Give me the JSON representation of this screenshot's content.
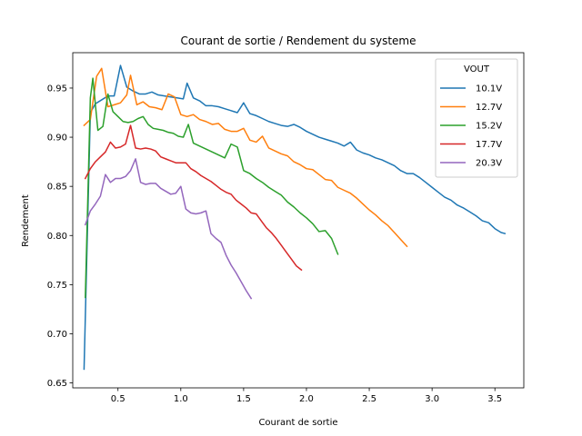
{
  "chart_data": {
    "type": "line",
    "title": "Courant de sortie / Rendement du systeme",
    "xlabel": "Courant de sortie",
    "ylabel": "Rendement",
    "xlim": [
      0.14,
      3.73
    ],
    "ylim": [
      0.645,
      0.986
    ],
    "xticks": [
      0.5,
      1.0,
      1.5,
      2.0,
      2.5,
      3.0,
      3.5
    ],
    "xtick_labels": [
      "0.5",
      "1.0",
      "1.5",
      "2.0",
      "2.5",
      "3.0",
      "3.5"
    ],
    "yticks": [
      0.65,
      0.7,
      0.75,
      0.8,
      0.85,
      0.9,
      0.95
    ],
    "ytick_labels": [
      "0.65",
      "0.70",
      "0.75",
      "0.80",
      "0.85",
      "0.90",
      "0.95"
    ],
    "grid": false,
    "legend": {
      "title": "VOUT",
      "position": "top-right"
    },
    "series": [
      {
        "name": "10.1V",
        "color": "#1f77b4",
        "points": [
          [
            0.23,
            0.664
          ],
          [
            0.28,
            0.925
          ],
          [
            0.32,
            0.934
          ],
          [
            0.37,
            0.938
          ],
          [
            0.42,
            0.942
          ],
          [
            0.47,
            0.942
          ],
          [
            0.52,
            0.973
          ],
          [
            0.57,
            0.951
          ],
          [
            0.62,
            0.947
          ],
          [
            0.67,
            0.944
          ],
          [
            0.72,
            0.944
          ],
          [
            0.77,
            0.946
          ],
          [
            0.82,
            0.943
          ],
          [
            0.87,
            0.942
          ],
          [
            0.92,
            0.941
          ],
          [
            0.97,
            0.94
          ],
          [
            1.02,
            0.939
          ],
          [
            1.05,
            0.955
          ],
          [
            1.1,
            0.94
          ],
          [
            1.15,
            0.937
          ],
          [
            1.2,
            0.932
          ],
          [
            1.25,
            0.932
          ],
          [
            1.3,
            0.931
          ],
          [
            1.35,
            0.929
          ],
          [
            1.4,
            0.927
          ],
          [
            1.45,
            0.925
          ],
          [
            1.5,
            0.935
          ],
          [
            1.55,
            0.924
          ],
          [
            1.6,
            0.922
          ],
          [
            1.65,
            0.919
          ],
          [
            1.7,
            0.916
          ],
          [
            1.75,
            0.914
          ],
          [
            1.8,
            0.912
          ],
          [
            1.85,
            0.911
          ],
          [
            1.9,
            0.913
          ],
          [
            1.95,
            0.91
          ],
          [
            2.0,
            0.906
          ],
          [
            2.05,
            0.903
          ],
          [
            2.1,
            0.9
          ],
          [
            2.15,
            0.898
          ],
          [
            2.2,
            0.896
          ],
          [
            2.25,
            0.894
          ],
          [
            2.3,
            0.891
          ],
          [
            2.35,
            0.895
          ],
          [
            2.4,
            0.887
          ],
          [
            2.45,
            0.884
          ],
          [
            2.5,
            0.882
          ],
          [
            2.55,
            0.879
          ],
          [
            2.6,
            0.877
          ],
          [
            2.65,
            0.874
          ],
          [
            2.7,
            0.871
          ],
          [
            2.75,
            0.866
          ],
          [
            2.8,
            0.863
          ],
          [
            2.85,
            0.863
          ],
          [
            2.9,
            0.859
          ],
          [
            2.95,
            0.854
          ],
          [
            3.0,
            0.849
          ],
          [
            3.05,
            0.844
          ],
          [
            3.1,
            0.839
          ],
          [
            3.15,
            0.836
          ],
          [
            3.2,
            0.831
          ],
          [
            3.25,
            0.828
          ],
          [
            3.3,
            0.824
          ],
          [
            3.35,
            0.82
          ],
          [
            3.4,
            0.815
          ],
          [
            3.45,
            0.813
          ],
          [
            3.5,
            0.807
          ],
          [
            3.55,
            0.803
          ],
          [
            3.58,
            0.802
          ]
        ]
      },
      {
        "name": "12.7V",
        "color": "#ff7f0e",
        "points": [
          [
            0.23,
            0.912
          ],
          [
            0.28,
            0.918
          ],
          [
            0.33,
            0.962
          ],
          [
            0.37,
            0.97
          ],
          [
            0.42,
            0.931
          ],
          [
            0.47,
            0.933
          ],
          [
            0.52,
            0.935
          ],
          [
            0.57,
            0.943
          ],
          [
            0.6,
            0.963
          ],
          [
            0.65,
            0.933
          ],
          [
            0.7,
            0.936
          ],
          [
            0.75,
            0.931
          ],
          [
            0.8,
            0.93
          ],
          [
            0.85,
            0.928
          ],
          [
            0.9,
            0.944
          ],
          [
            0.95,
            0.941
          ],
          [
            1.0,
            0.923
          ],
          [
            1.05,
            0.921
          ],
          [
            1.1,
            0.923
          ],
          [
            1.15,
            0.918
          ],
          [
            1.2,
            0.916
          ],
          [
            1.25,
            0.913
          ],
          [
            1.3,
            0.914
          ],
          [
            1.35,
            0.908
          ],
          [
            1.4,
            0.906
          ],
          [
            1.45,
            0.906
          ],
          [
            1.5,
            0.909
          ],
          [
            1.55,
            0.897
          ],
          [
            1.6,
            0.895
          ],
          [
            1.65,
            0.901
          ],
          [
            1.7,
            0.889
          ],
          [
            1.75,
            0.886
          ],
          [
            1.8,
            0.883
          ],
          [
            1.85,
            0.881
          ],
          [
            1.9,
            0.875
          ],
          [
            1.95,
            0.872
          ],
          [
            2.0,
            0.868
          ],
          [
            2.05,
            0.867
          ],
          [
            2.1,
            0.862
          ],
          [
            2.15,
            0.857
          ],
          [
            2.2,
            0.856
          ],
          [
            2.25,
            0.849
          ],
          [
            2.3,
            0.846
          ],
          [
            2.35,
            0.843
          ],
          [
            2.4,
            0.838
          ],
          [
            2.45,
            0.832
          ],
          [
            2.5,
            0.826
          ],
          [
            2.55,
            0.821
          ],
          [
            2.6,
            0.815
          ],
          [
            2.65,
            0.81
          ],
          [
            2.7,
            0.803
          ],
          [
            2.75,
            0.796
          ],
          [
            2.8,
            0.789
          ]
        ]
      },
      {
        "name": "15.2V",
        "color": "#2ca02c",
        "points": [
          [
            0.24,
            0.737
          ],
          [
            0.28,
            0.94
          ],
          [
            0.3,
            0.96
          ],
          [
            0.34,
            0.907
          ],
          [
            0.38,
            0.911
          ],
          [
            0.42,
            0.944
          ],
          [
            0.46,
            0.926
          ],
          [
            0.5,
            0.921
          ],
          [
            0.54,
            0.916
          ],
          [
            0.58,
            0.915
          ],
          [
            0.62,
            0.916
          ],
          [
            0.66,
            0.919
          ],
          [
            0.7,
            0.921
          ],
          [
            0.74,
            0.913
          ],
          [
            0.78,
            0.909
          ],
          [
            0.82,
            0.908
          ],
          [
            0.86,
            0.907
          ],
          [
            0.9,
            0.905
          ],
          [
            0.94,
            0.904
          ],
          [
            0.98,
            0.901
          ],
          [
            1.02,
            0.9
          ],
          [
            1.06,
            0.913
          ],
          [
            1.1,
            0.894
          ],
          [
            1.15,
            0.891
          ],
          [
            1.2,
            0.888
          ],
          [
            1.25,
            0.885
          ],
          [
            1.3,
            0.882
          ],
          [
            1.35,
            0.879
          ],
          [
            1.4,
            0.893
          ],
          [
            1.45,
            0.89
          ],
          [
            1.5,
            0.866
          ],
          [
            1.55,
            0.863
          ],
          [
            1.6,
            0.858
          ],
          [
            1.65,
            0.854
          ],
          [
            1.7,
            0.849
          ],
          [
            1.75,
            0.845
          ],
          [
            1.8,
            0.841
          ],
          [
            1.85,
            0.834
          ],
          [
            1.9,
            0.829
          ],
          [
            1.95,
            0.823
          ],
          [
            2.0,
            0.818
          ],
          [
            2.05,
            0.812
          ],
          [
            2.1,
            0.804
          ],
          [
            2.15,
            0.805
          ],
          [
            2.2,
            0.797
          ],
          [
            2.25,
            0.781
          ]
        ]
      },
      {
        "name": "17.7V",
        "color": "#d62728",
        "points": [
          [
            0.24,
            0.858
          ],
          [
            0.28,
            0.868
          ],
          [
            0.32,
            0.875
          ],
          [
            0.36,
            0.88
          ],
          [
            0.4,
            0.885
          ],
          [
            0.44,
            0.895
          ],
          [
            0.48,
            0.889
          ],
          [
            0.52,
            0.89
          ],
          [
            0.56,
            0.893
          ],
          [
            0.6,
            0.912
          ],
          [
            0.64,
            0.889
          ],
          [
            0.68,
            0.888
          ],
          [
            0.72,
            0.889
          ],
          [
            0.76,
            0.888
          ],
          [
            0.8,
            0.886
          ],
          [
            0.84,
            0.88
          ],
          [
            0.88,
            0.878
          ],
          [
            0.92,
            0.876
          ],
          [
            0.96,
            0.874
          ],
          [
            1.0,
            0.874
          ],
          [
            1.04,
            0.874
          ],
          [
            1.08,
            0.868
          ],
          [
            1.12,
            0.865
          ],
          [
            1.16,
            0.861
          ],
          [
            1.2,
            0.858
          ],
          [
            1.24,
            0.855
          ],
          [
            1.28,
            0.851
          ],
          [
            1.32,
            0.847
          ],
          [
            1.36,
            0.844
          ],
          [
            1.4,
            0.842
          ],
          [
            1.44,
            0.836
          ],
          [
            1.48,
            0.832
          ],
          [
            1.52,
            0.828
          ],
          [
            1.56,
            0.823
          ],
          [
            1.6,
            0.822
          ],
          [
            1.64,
            0.815
          ],
          [
            1.68,
            0.808
          ],
          [
            1.72,
            0.803
          ],
          [
            1.76,
            0.797
          ],
          [
            1.8,
            0.79
          ],
          [
            1.84,
            0.783
          ],
          [
            1.88,
            0.776
          ],
          [
            1.92,
            0.769
          ],
          [
            1.96,
            0.765
          ]
        ]
      },
      {
        "name": "20.3V",
        "color": "#9467bd",
        "points": [
          [
            0.24,
            0.811
          ],
          [
            0.28,
            0.825
          ],
          [
            0.32,
            0.832
          ],
          [
            0.36,
            0.84
          ],
          [
            0.4,
            0.862
          ],
          [
            0.44,
            0.854
          ],
          [
            0.48,
            0.858
          ],
          [
            0.52,
            0.858
          ],
          [
            0.56,
            0.86
          ],
          [
            0.6,
            0.866
          ],
          [
            0.64,
            0.878
          ],
          [
            0.68,
            0.854
          ],
          [
            0.72,
            0.852
          ],
          [
            0.76,
            0.853
          ],
          [
            0.8,
            0.853
          ],
          [
            0.84,
            0.848
          ],
          [
            0.88,
            0.845
          ],
          [
            0.92,
            0.842
          ],
          [
            0.96,
            0.843
          ],
          [
            1.0,
            0.85
          ],
          [
            1.04,
            0.827
          ],
          [
            1.08,
            0.823
          ],
          [
            1.12,
            0.822
          ],
          [
            1.16,
            0.823
          ],
          [
            1.2,
            0.825
          ],
          [
            1.24,
            0.802
          ],
          [
            1.28,
            0.797
          ],
          [
            1.32,
            0.793
          ],
          [
            1.36,
            0.78
          ],
          [
            1.4,
            0.77
          ],
          [
            1.44,
            0.762
          ],
          [
            1.48,
            0.753
          ],
          [
            1.52,
            0.744
          ],
          [
            1.56,
            0.736
          ]
        ]
      }
    ]
  }
}
